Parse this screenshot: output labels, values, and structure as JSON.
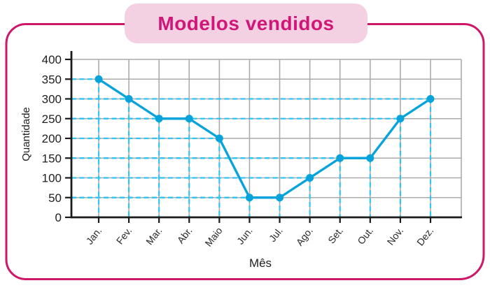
{
  "card": {
    "title": "Modelos vendidos",
    "border_color": "#ce1768",
    "badge_bg": "#f3d1e3",
    "title_color": "#d01778"
  },
  "chart_data": {
    "type": "line",
    "title": "Modelos vendidos",
    "categories": [
      "Jan.",
      "Fev.",
      "Mar.",
      "Abr.",
      "Maio",
      "Jun.",
      "Jul.",
      "Ago.",
      "Set.",
      "Out.",
      "Nov.",
      "Dez."
    ],
    "values": [
      350,
      300,
      250,
      250,
      200,
      50,
      50,
      100,
      150,
      150,
      250,
      300
    ],
    "xlabel": "Mês",
    "ylabel": "Quantidade",
    "ylim": [
      0,
      400
    ],
    "yticks": [
      0,
      50,
      100,
      150,
      200,
      250,
      300,
      350,
      400
    ],
    "grid": true,
    "legend": false,
    "line_color": "#09a3dc",
    "marker_color": "#09a3dc",
    "guide_color": "#2cc5f4",
    "grid_color": "#ababab",
    "axis_color": "#1a1a1a"
  }
}
